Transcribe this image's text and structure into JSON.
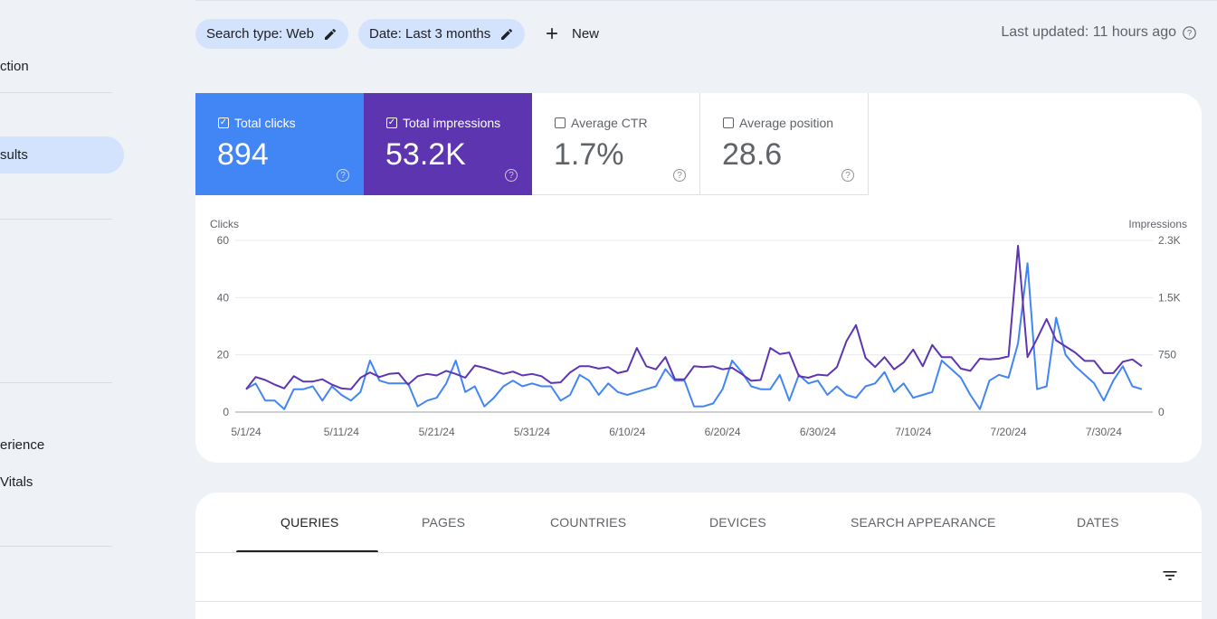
{
  "sidebar": {
    "items": [
      {
        "label": "ction"
      },
      {
        "label": "sults"
      },
      {
        "label": "erience"
      },
      {
        "label": " Vitals"
      }
    ]
  },
  "filters": {
    "chips": [
      {
        "label": "Search type: Web"
      },
      {
        "label": "Date: Last 3 months"
      }
    ],
    "new_label": "New",
    "last_updated": "Last updated: 11 hours ago"
  },
  "metrics": [
    {
      "label": "Total clicks",
      "value": "894",
      "checked": true,
      "color": "#4285f4"
    },
    {
      "label": "Total impressions",
      "value": "53.2K",
      "checked": true,
      "color": "#5e35b1"
    },
    {
      "label": "Average CTR",
      "value": "1.7%",
      "checked": false
    },
    {
      "label": "Average position",
      "value": "28.6",
      "checked": false
    }
  ],
  "chart_data": {
    "type": "line",
    "left_axis_label": "Clicks",
    "right_axis_label": "Impressions",
    "left_ticks": [
      "0",
      "20",
      "40",
      "60"
    ],
    "left_ylim": [
      0,
      60
    ],
    "right_ticks": [
      "0",
      "750",
      "1.5K",
      "2.3K"
    ],
    "right_ylim": [
      0,
      2250
    ],
    "x_ticks": [
      "5/1/24",
      "5/11/24",
      "5/21/24",
      "5/31/24",
      "6/10/24",
      "6/20/24",
      "6/30/24",
      "7/10/24",
      "7/20/24",
      "7/30/24"
    ],
    "x_start": "2024-05-01",
    "series": [
      {
        "name": "Clicks",
        "color": "#4285f4",
        "axis": "left",
        "values": [
          8,
          10,
          4,
          4,
          1,
          8,
          8,
          9,
          4,
          9,
          6,
          4,
          7,
          18,
          11,
          10,
          10,
          10,
          2,
          4,
          5,
          10,
          18,
          7,
          9,
          2,
          5,
          9,
          11,
          9,
          10,
          9,
          9,
          4,
          6,
          13,
          11,
          6,
          10,
          7,
          6,
          7,
          8,
          9,
          15,
          11,
          11,
          2,
          2,
          3,
          8,
          18,
          14,
          9,
          8,
          8,
          13,
          4,
          13,
          10,
          11,
          6,
          9,
          6,
          5,
          9,
          10,
          14,
          7,
          10,
          5,
          6,
          7,
          18,
          15,
          12,
          6,
          1,
          11,
          13,
          12,
          24,
          52,
          8,
          9,
          33,
          20,
          16,
          13,
          10,
          4,
          11,
          16,
          9,
          8
        ],
        "note": "approximate daily values"
      },
      {
        "name": "Impressions",
        "color": "#5e35b1",
        "axis": "right",
        "values": [
          300,
          460,
          420,
          360,
          310,
          470,
          400,
          400,
          430,
          360,
          310,
          300,
          450,
          520,
          460,
          500,
          510,
          360,
          470,
          500,
          480,
          540,
          500,
          450,
          610,
          580,
          540,
          500,
          530,
          480,
          500,
          470,
          380,
          390,
          520,
          600,
          600,
          570,
          590,
          510,
          540,
          840,
          600,
          560,
          720,
          430,
          430,
          600,
          590,
          600,
          560,
          580,
          500,
          410,
          420,
          840,
          760,
          780,
          470,
          450,
          490,
          480,
          590,
          930,
          1140,
          710,
          590,
          720,
          560,
          650,
          820,
          600,
          880,
          720,
          720,
          570,
          540,
          700,
          690,
          700,
          730,
          2180,
          720,
          960,
          1220,
          940,
          860,
          780,
          670,
          670,
          510,
          510,
          660,
          690,
          600
        ]
      }
    ]
  },
  "tabs": [
    {
      "label": "QUERIES"
    },
    {
      "label": "PAGES"
    },
    {
      "label": "COUNTRIES"
    },
    {
      "label": "DEVICES"
    },
    {
      "label": "SEARCH APPEARANCE"
    },
    {
      "label": "DATES"
    }
  ]
}
